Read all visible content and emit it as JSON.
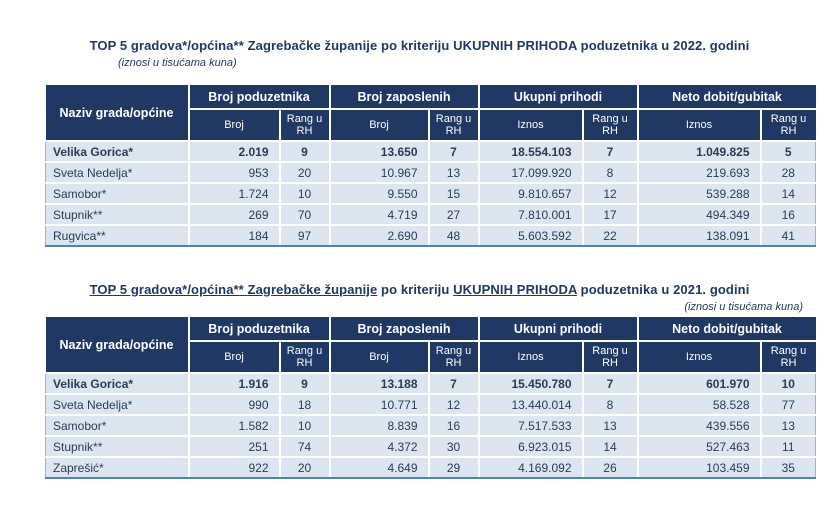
{
  "colors": {
    "header_bg": "#1F3864",
    "header_text": "#FFFFFF",
    "row_bg": "#DCE6F1",
    "bottom_border": "#4F81BD",
    "title_text": "#1F3864"
  },
  "tables": [
    {
      "year": "2022",
      "title_segments": [
        {
          "text": "TOP 5 gradova*/općina** Zagrebačke županije po kriteriju UKUPNIH PRIHODA poduzetnika u 2022. godini",
          "underline": false
        }
      ],
      "subtitle": "(iznosi u tisućama kuna)",
      "header": {
        "name_column": "Naziv grada/općine",
        "groups": [
          {
            "label": "Broj poduzetnika",
            "subcolumns": [
              "Broj",
              "Rang u RH"
            ]
          },
          {
            "label": "Broj zaposlenih",
            "subcolumns": [
              "Broj",
              "Rang u RH"
            ]
          },
          {
            "label": "Ukupni prihodi",
            "subcolumns": [
              "Iznos",
              "Rang u RH"
            ]
          },
          {
            "label": "Neto dobit/gubitak",
            "subcolumns": [
              "Iznos",
              "Rang u RH"
            ]
          }
        ]
      },
      "rows": [
        {
          "name": "Velika Gorica*",
          "bold": true,
          "values": [
            "2.019",
            "9",
            "13.650",
            "7",
            "18.554.103",
            "7",
            "1.049.825",
            "5"
          ]
        },
        {
          "name": "Sveta Nedelja*",
          "bold": false,
          "values": [
            "953",
            "20",
            "10.967",
            "13",
            "17.099.920",
            "8",
            "219.693",
            "28"
          ]
        },
        {
          "name": "Samobor*",
          "bold": false,
          "values": [
            "1.724",
            "10",
            "9.550",
            "15",
            "9.810.657",
            "12",
            "539.288",
            "14"
          ]
        },
        {
          "name": "Stupnik**",
          "bold": false,
          "values": [
            "269",
            "70",
            "4.719",
            "27",
            "7.810.001",
            "17",
            "494.349",
            "16"
          ]
        },
        {
          "name": "Rugvica**",
          "bold": false,
          "values": [
            "184",
            "97",
            "2.690",
            "48",
            "5.603.592",
            "22",
            "138.091",
            "41"
          ]
        }
      ]
    },
    {
      "year": "2021",
      "title_segments": [
        {
          "text": "TOP 5 gradova*/općina** Zagrebačke županije",
          "underline": true
        },
        {
          "text": " po kriteriju ",
          "underline": false
        },
        {
          "text": "UKUPNIH PRIHODA",
          "underline": true
        },
        {
          "text": " poduzetnika u 2021. godini",
          "underline": false
        }
      ],
      "subtitle": "(iznosi u tisućama kuna)",
      "header": {
        "name_column": "Naziv grada/općine",
        "groups": [
          {
            "label": "Broj poduzetnika",
            "subcolumns": [
              "Broj",
              "Rang u RH"
            ]
          },
          {
            "label": "Broj zaposlenih",
            "subcolumns": [
              "Broj",
              "Rang u RH"
            ]
          },
          {
            "label": "Ukupni prihodi",
            "subcolumns": [
              "Iznos",
              "Rang u RH"
            ]
          },
          {
            "label": "Neto dobit/gubitak",
            "subcolumns": [
              "Iznos",
              "Rang u RH"
            ]
          }
        ]
      },
      "rows": [
        {
          "name": "Velika Gorica*",
          "bold": true,
          "values": [
            "1.916",
            "9",
            "13.188",
            "7",
            "15.450.780",
            "7",
            "601.970",
            "10"
          ]
        },
        {
          "name": "Sveta Nedelja*",
          "bold": false,
          "values": [
            "990",
            "18",
            "10.771",
            "12",
            "13.440.014",
            "8",
            "58.528",
            "77"
          ]
        },
        {
          "name": "Samobor*",
          "bold": false,
          "values": [
            "1.582",
            "10",
            "8.839",
            "16",
            "7.517.533",
            "13",
            "439.556",
            "13"
          ]
        },
        {
          "name": "Stupnik**",
          "bold": false,
          "values": [
            "251",
            "74",
            "4.372",
            "30",
            "6.923.015",
            "14",
            "527.463",
            "11"
          ]
        },
        {
          "name": "Zaprešić*",
          "bold": false,
          "values": [
            "922",
            "20",
            "4.649",
            "29",
            "4.169.092",
            "26",
            "103.459",
            "35"
          ]
        }
      ]
    }
  ]
}
